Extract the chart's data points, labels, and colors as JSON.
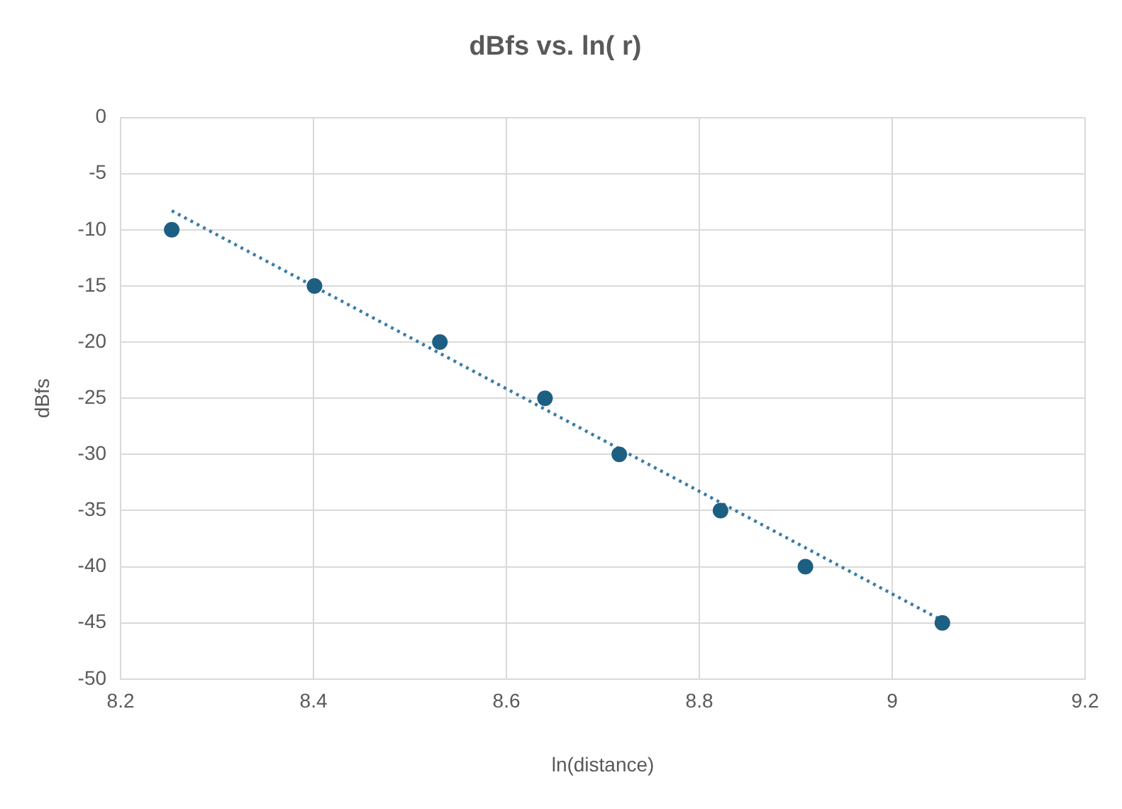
{
  "chart_data": {
    "type": "scatter",
    "title": "dBfs vs. ln( r)",
    "xlabel": "ln(distance)",
    "ylabel": "dBfs",
    "x": [
      8.253,
      8.401,
      8.531,
      8.64,
      8.717,
      8.822,
      8.91,
      9.052
    ],
    "series": [
      {
        "type": "scatter",
        "color": "#1d5f82",
        "values": [
          -10,
          -15,
          -20,
          -25,
          -30,
          -35,
          -40,
          -45
        ],
        "marker": "circle"
      },
      {
        "type": "line",
        "color": "#3a7ca5",
        "x": [
          8.253,
          9.052
        ],
        "values": [
          -8.3,
          -44.8
        ],
        "line_style": "dotted",
        "marker": "none"
      }
    ],
    "xlim": [
      8.2,
      9.2
    ],
    "xticks": [
      8.2,
      8.4,
      8.6,
      8.8,
      9,
      9.2
    ],
    "ylim": [
      -50,
      0
    ],
    "yticks": [
      -50,
      -45,
      -40,
      -35,
      -30,
      -25,
      -20,
      -15,
      -10,
      -5,
      0
    ],
    "grid": true,
    "legend": false
  }
}
